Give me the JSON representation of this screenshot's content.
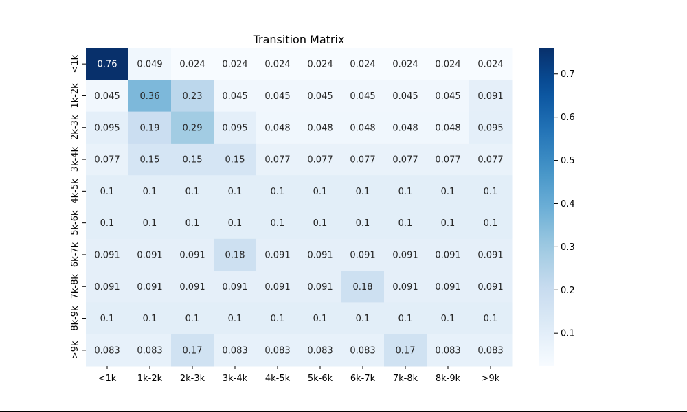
{
  "chart_data": {
    "type": "heatmap",
    "title": "Transition Matrix",
    "xlabel": "",
    "ylabel": "",
    "x_categories": [
      "<1k",
      "1k-2k",
      "2k-3k",
      "3k-4k",
      "4k-5k",
      "5k-6k",
      "6k-7k",
      "7k-8k",
      "8k-9k",
      ">9k"
    ],
    "y_categories": [
      "<1k",
      "1k-2k",
      "2k-3k",
      "3k-4k",
      "4k-5k",
      "5k-6k",
      "6k-7k",
      "7k-8k",
      "8k-9k",
      ">9k"
    ],
    "values": [
      [
        0.76,
        0.049,
        0.024,
        0.024,
        0.024,
        0.024,
        0.024,
        0.024,
        0.024,
        0.024
      ],
      [
        0.045,
        0.36,
        0.23,
        0.045,
        0.045,
        0.045,
        0.045,
        0.045,
        0.045,
        0.091
      ],
      [
        0.095,
        0.19,
        0.29,
        0.095,
        0.048,
        0.048,
        0.048,
        0.048,
        0.048,
        0.095
      ],
      [
        0.077,
        0.15,
        0.15,
        0.15,
        0.077,
        0.077,
        0.077,
        0.077,
        0.077,
        0.077
      ],
      [
        0.1,
        0.1,
        0.1,
        0.1,
        0.1,
        0.1,
        0.1,
        0.1,
        0.1,
        0.1
      ],
      [
        0.1,
        0.1,
        0.1,
        0.1,
        0.1,
        0.1,
        0.1,
        0.1,
        0.1,
        0.1
      ],
      [
        0.091,
        0.091,
        0.091,
        0.18,
        0.091,
        0.091,
        0.091,
        0.091,
        0.091,
        0.091
      ],
      [
        0.091,
        0.091,
        0.091,
        0.091,
        0.091,
        0.091,
        0.18,
        0.091,
        0.091,
        0.091
      ],
      [
        0.1,
        0.1,
        0.1,
        0.1,
        0.1,
        0.1,
        0.1,
        0.1,
        0.1,
        0.1
      ],
      [
        0.083,
        0.083,
        0.17,
        0.083,
        0.083,
        0.083,
        0.083,
        0.17,
        0.083,
        0.083
      ]
    ],
    "colormap": "Blues",
    "vmin": 0.024,
    "vmax": 0.76,
    "colorbar_ticks": [
      0.1,
      0.2,
      0.3,
      0.4,
      0.5,
      0.6,
      0.7
    ],
    "annotated": true,
    "grid": false,
    "colorbar_position": "right"
  }
}
